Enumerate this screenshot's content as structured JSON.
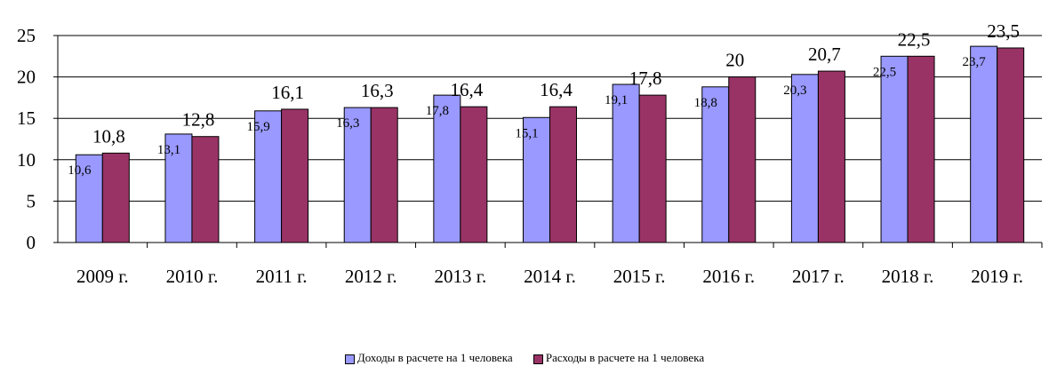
{
  "chart_data": {
    "type": "bar",
    "categories": [
      "2009 г.",
      "2010 г.",
      "2011 г.",
      "2012 г.",
      "2013 г.",
      "2014 г.",
      "2015 г.",
      "2016 г.",
      "2017 г.",
      "2018 г.",
      "2019 г."
    ],
    "series": [
      {
        "name": "Доходы в расчете на 1 человека",
        "color": "#9999ff",
        "values": [
          10.6,
          13.1,
          15.9,
          16.3,
          17.8,
          15.1,
          19.1,
          18.8,
          20.3,
          22.5,
          23.7
        ],
        "labels": [
          "10,6",
          "13,1",
          "15,9",
          "16,3",
          "17,8",
          "15,1",
          "19,1",
          "18,8",
          "20,3",
          "22,5",
          "23,7"
        ]
      },
      {
        "name": "Расходы в расчете на 1 человека",
        "color": "#993366",
        "values": [
          10.8,
          12.8,
          16.1,
          16.3,
          16.4,
          16.4,
          17.8,
          20,
          20.7,
          22.5,
          23.5
        ],
        "labels": [
          "10,8",
          "12,8",
          "16,1",
          "16,3",
          "16,4",
          "16,4",
          "17,8",
          "20",
          "20,7",
          "22,5",
          "23,5"
        ]
      }
    ],
    "yticks": [
      "0",
      "5",
      "10",
      "15",
      "20",
      "25"
    ],
    "ylim": [
      0,
      25
    ],
    "grid": true,
    "legend_position": "bottom"
  }
}
